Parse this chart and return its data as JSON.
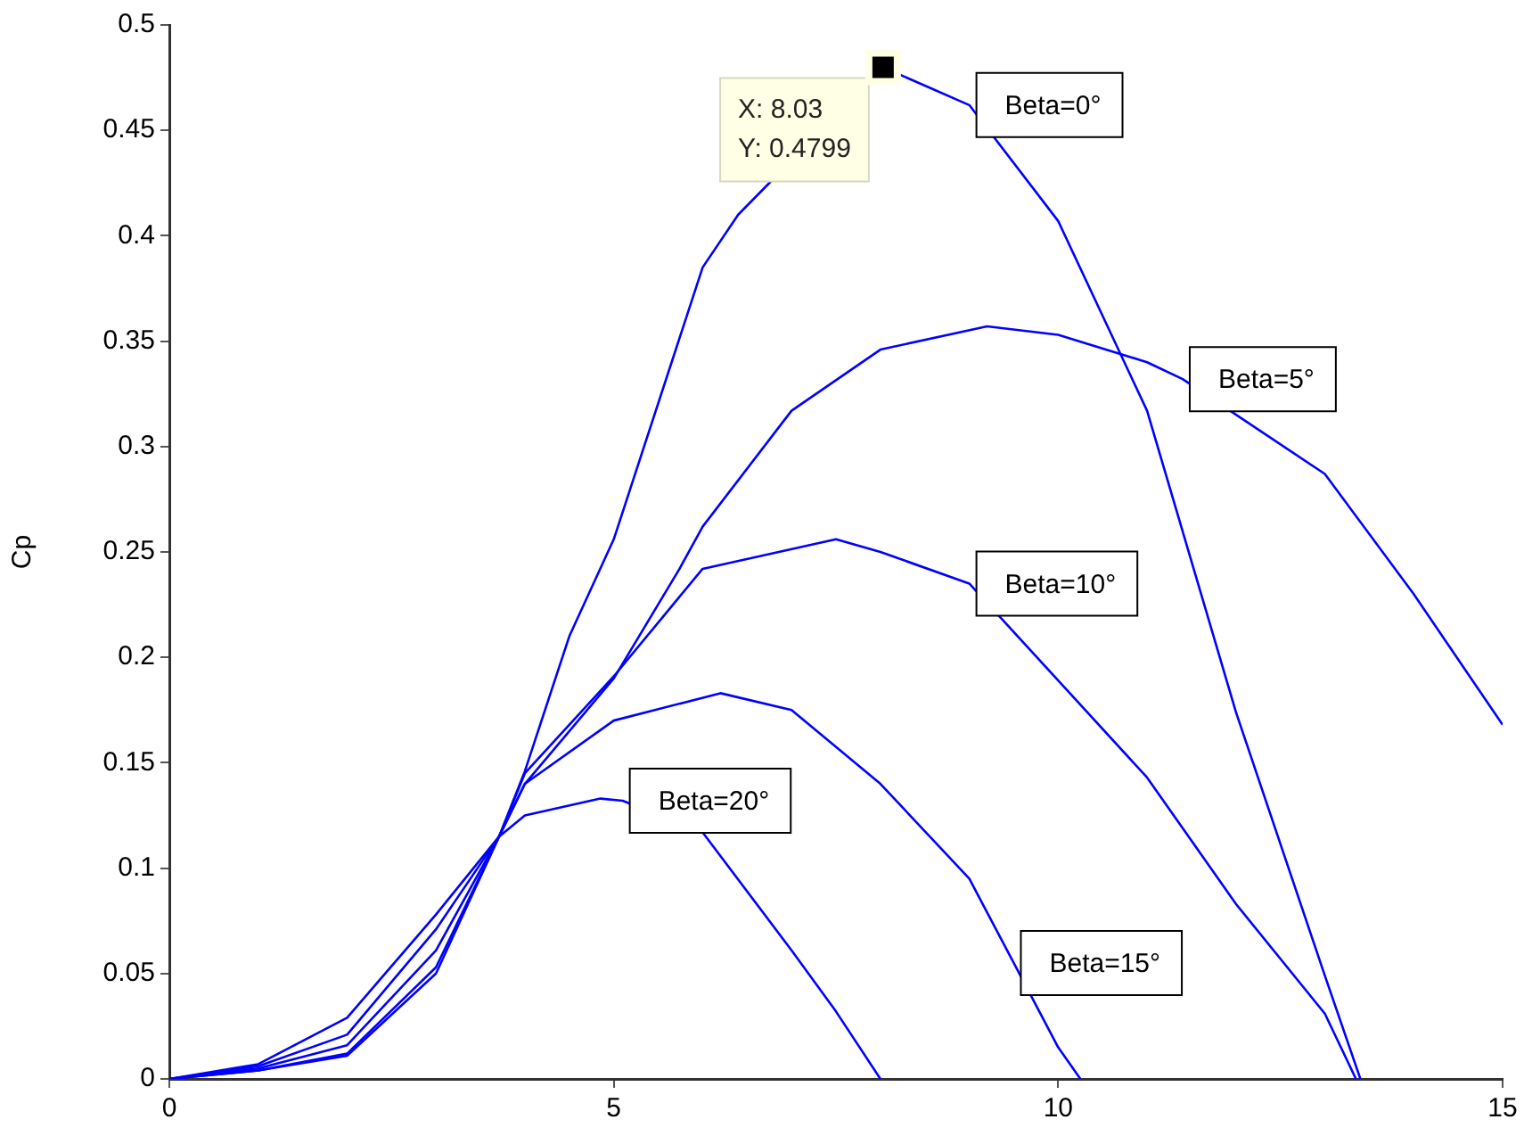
{
  "chart_data": {
    "type": "line",
    "ylabel": "Cp",
    "xlim": [
      0,
      15
    ],
    "xticks": [
      0,
      5,
      10,
      15
    ],
    "ylim": [
      0,
      0.5
    ],
    "yticks": [
      0,
      0.05,
      0.1,
      0.15,
      0.2,
      0.25,
      0.3,
      0.35,
      0.4,
      0.45,
      0.5
    ],
    "grid": false,
    "legend": false,
    "marker": "none",
    "line_style": "solid",
    "series": [
      {
        "color": "#0000ff",
        "x": [
          0,
          1,
          2,
          3,
          3.71,
          4,
          4.5,
          5,
          6,
          6.4,
          8.03,
          9,
          10,
          11,
          12,
          13,
          13.4
        ],
        "values": [
          0,
          0.004,
          0.011,
          0.05,
          0.115,
          0.146,
          0.21,
          0.256,
          0.385,
          0.41,
          0.4799,
          0.462,
          0.407,
          0.317,
          0.174,
          0.049,
          0
        ]
      },
      {
        "color": "#0000ff",
        "x": [
          0,
          1,
          2,
          3,
          3.71,
          4,
          5,
          5.74,
          6,
          7,
          8,
          9.2,
          10,
          11,
          11.4,
          13,
          14,
          15
        ],
        "values": [
          0,
          0.004,
          0.012,
          0.053,
          0.115,
          0.14,
          0.19,
          0.242,
          0.262,
          0.317,
          0.346,
          0.357,
          0.353,
          0.34,
          0.332,
          0.287,
          0.23,
          0.168
        ]
      },
      {
        "color": "#0000ff",
        "x": [
          0,
          1,
          2,
          3,
          3.71,
          4,
          5,
          6,
          7.5,
          8,
          9,
          10,
          11,
          12,
          13,
          13.35
        ],
        "values": [
          0,
          0.005,
          0.016,
          0.061,
          0.115,
          0.145,
          0.191,
          0.242,
          0.256,
          0.25,
          0.235,
          0.189,
          0.143,
          0.083,
          0.031,
          0
        ]
      },
      {
        "color": "#0000ff",
        "x": [
          0,
          1,
          2,
          3,
          3.71,
          4,
          5,
          6.2,
          7,
          8,
          9,
          9.5,
          10,
          10.25
        ],
        "values": [
          0,
          0.006,
          0.021,
          0.071,
          0.115,
          0.14,
          0.17,
          0.183,
          0.175,
          0.14,
          0.095,
          0.055,
          0.015,
          0
        ]
      },
      {
        "color": "#0000ff",
        "x": [
          0,
          1,
          2,
          3,
          3.71,
          4,
          4.85,
          5.1,
          6,
          7,
          7.5,
          8
        ],
        "values": [
          0,
          0.007,
          0.029,
          0.078,
          0.115,
          0.125,
          0.133,
          0.132,
          0.117,
          0.061,
          0.032,
          0
        ]
      }
    ],
    "annotations": [
      {
        "text": "Beta=0°",
        "x": 9,
        "y": 0.462
      },
      {
        "text": "Beta=5°",
        "x": 11.4,
        "y": 0.332
      },
      {
        "text": "Beta=10°",
        "x": 9,
        "y": 0.235
      },
      {
        "text": "Beta=20°",
        "x": 5.1,
        "y": 0.132
      },
      {
        "text": "Beta=15°",
        "x": 9.5,
        "y": 0.055
      },
      {
        "text": "X: 8.03\nY: 0.4799",
        "x": 8.03,
        "y": 0.4799
      }
    ]
  }
}
